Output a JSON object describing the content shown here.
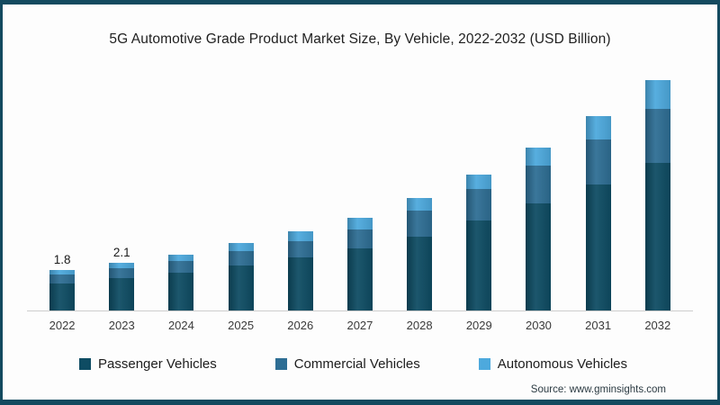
{
  "page": {
    "source": "Source: www.gminsights.com"
  },
  "colors": {
    "page_border": "#134a5f",
    "axis_line": "#cdcdcd",
    "title_text": "#1f1f1f",
    "passenger": "#0e4c63",
    "commercial": "#2e6e94",
    "autonomous": "#4da9dd"
  },
  "chart_data": {
    "type": "bar",
    "stacked": true,
    "title": "5G Automotive Grade Product Market Size, By Vehicle, 2022-2032 (USD Billion)",
    "unit": "USD Billion",
    "categories": [
      "2022",
      "2023",
      "2024",
      "2025",
      "2026",
      "2027",
      "2028",
      "2029",
      "2030",
      "2031",
      "2032"
    ],
    "series": [
      {
        "name": "Passenger Vehicles",
        "color": "#0e4c63",
        "values": [
          1.2,
          1.45,
          1.7,
          2.0,
          2.35,
          2.75,
          3.3,
          4.0,
          4.75,
          5.6,
          6.55
        ]
      },
      {
        "name": "Commercial Vehicles",
        "color": "#2e6e94",
        "values": [
          0.4,
          0.42,
          0.5,
          0.65,
          0.72,
          0.83,
          1.15,
          1.4,
          1.7,
          2.0,
          2.4
        ]
      },
      {
        "name": "Autonomous Vehicles",
        "color": "#4da9dd",
        "values": [
          0.2,
          0.23,
          0.3,
          0.35,
          0.43,
          0.52,
          0.55,
          0.65,
          0.8,
          1.05,
          1.3
        ]
      }
    ],
    "totals": [
      1.8,
      2.1,
      2.5,
      3.0,
      3.5,
      4.1,
      5.0,
      6.05,
      7.25,
      8.65,
      10.25
    ],
    "value_labels": [
      "1.8",
      "2.1",
      "",
      "",
      "",
      "",
      "",
      "",
      "",
      "",
      ""
    ],
    "ylim": [
      0,
      10.5
    ],
    "grid": false,
    "y_axis_visible": false,
    "legend_position": "bottom"
  }
}
